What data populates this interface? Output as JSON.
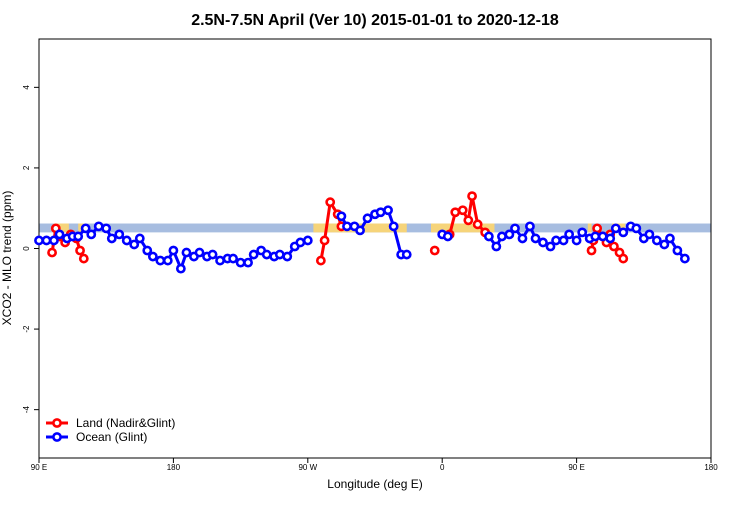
{
  "chart_data": {
    "type": "line",
    "title": "2.5N-7.5N April (Ver 10)   2015-01-01 to 2020-12-18",
    "xlabel": "Longitude (deg E)",
    "ylabel": "XCO2 - MLO trend (ppm)",
    "xlim": [
      90,
      450
    ],
    "ylim": [
      -5.2,
      5.2
    ],
    "x_ticks": [
      {
        "value": 90,
        "label": "90 E"
      },
      {
        "value": 162,
        "label": "180"
      },
      {
        "value": 234,
        "label": "90 W"
      },
      {
        "value": 306,
        "label": "0"
      },
      {
        "value": 378,
        "label": "90 E"
      },
      {
        "value": 450,
        "label": "180"
      }
    ],
    "y_ticks": [
      {
        "value": -4,
        "label": "-4"
      },
      {
        "value": -2,
        "label": "-2"
      },
      {
        "value": 0,
        "label": "0"
      },
      {
        "value": 2,
        "label": "2"
      },
      {
        "value": 4,
        "label": "4"
      }
    ],
    "band": {
      "name": "MLO reference band",
      "color": "#a7bde0",
      "y_range": [
        0.4,
        0.62
      ]
    },
    "land_band_color": "#f6d47a",
    "land_band_ranges": [
      [
        98,
        106
      ],
      [
        111,
        115
      ],
      [
        237,
        287
      ],
      [
        300,
        334
      ],
      [
        345,
        346
      ],
      [
        384,
        386
      ],
      [
        397,
        404
      ]
    ],
    "series": [
      {
        "name": "Land (Nadir&Glint)",
        "color": "#ff0000",
        "segments": [
          [
            [
              97,
              -0.1
            ],
            [
              99,
              0.5
            ],
            [
              101,
              0.3
            ],
            [
              104,
              0.15
            ],
            [
              107,
              0.35
            ]
          ],
          [
            [
              110,
              0.25
            ],
            [
              112,
              -0.05
            ],
            [
              114,
              -0.25
            ]
          ],
          [
            [
              241,
              -0.3
            ],
            [
              243,
              0.2
            ],
            [
              246,
              1.15
            ],
            [
              250,
              0.85
            ],
            [
              252,
              0.55
            ]
          ],
          [
            [
              302,
              -0.05
            ]
          ],
          [
            [
              310,
              0.35
            ],
            [
              313,
              0.9
            ],
            [
              317,
              0.95
            ],
            [
              320,
              0.7
            ],
            [
              322,
              1.3
            ],
            [
              325,
              0.6
            ],
            [
              329,
              0.4
            ]
          ],
          [
            [
              386,
              -0.05
            ],
            [
              387,
              0.2
            ],
            [
              389,
              0.5
            ],
            [
              392,
              0.3
            ],
            [
              394,
              0.15
            ],
            [
              396,
              0.35
            ],
            [
              398,
              0.05
            ],
            [
              401,
              -0.1
            ],
            [
              403,
              -0.25
            ]
          ]
        ]
      },
      {
        "name": "Ocean (Glint)",
        "color": "#0000ff",
        "segments": [
          [
            [
              90,
              0.2
            ],
            [
              94,
              0.2
            ],
            [
              98,
              0.2
            ],
            [
              101,
              0.35
            ],
            [
              105,
              0.25
            ],
            [
              108,
              0.3
            ],
            [
              111,
              0.3
            ],
            [
              115,
              0.5
            ],
            [
              118,
              0.35
            ],
            [
              122,
              0.55
            ],
            [
              126,
              0.5
            ],
            [
              129,
              0.25
            ],
            [
              133,
              0.35
            ],
            [
              137,
              0.2
            ],
            [
              141,
              0.1
            ],
            [
              144,
              0.25
            ],
            [
              148,
              -0.05
            ],
            [
              151,
              -0.2
            ],
            [
              155,
              -0.3
            ],
            [
              159,
              -0.3
            ],
            [
              162,
              -0.05
            ],
            [
              166,
              -0.5
            ],
            [
              169,
              -0.1
            ],
            [
              173,
              -0.2
            ],
            [
              176,
              -0.1
            ],
            [
              180,
              -0.2
            ],
            [
              183,
              -0.15
            ],
            [
              187,
              -0.3
            ],
            [
              191,
              -0.25
            ],
            [
              194,
              -0.25
            ],
            [
              198,
              -0.35
            ],
            [
              202,
              -0.35
            ],
            [
              205,
              -0.15
            ],
            [
              209,
              -0.05
            ],
            [
              212,
              -0.15
            ],
            [
              216,
              -0.2
            ],
            [
              219,
              -0.15
            ],
            [
              223,
              -0.2
            ],
            [
              227,
              0.05
            ],
            [
              230,
              0.15
            ],
            [
              234,
              0.2
            ]
          ],
          [
            [
              252,
              0.8
            ],
            [
              255,
              0.55
            ],
            [
              259,
              0.55
            ],
            [
              262,
              0.45
            ],
            [
              266,
              0.75
            ],
            [
              270,
              0.85
            ],
            [
              273,
              0.9
            ],
            [
              277,
              0.95
            ],
            [
              280,
              0.55
            ],
            [
              284,
              -0.15
            ],
            [
              287,
              -0.15
            ]
          ],
          [
            [
              306,
              0.35
            ],
            [
              309,
              0.3
            ]
          ],
          [
            [
              331,
              0.3
            ],
            [
              335,
              0.05
            ],
            [
              338,
              0.3
            ],
            [
              342,
              0.35
            ],
            [
              345,
              0.5
            ],
            [
              349,
              0.25
            ],
            [
              353,
              0.55
            ],
            [
              356,
              0.25
            ],
            [
              360,
              0.15
            ],
            [
              364,
              0.05
            ],
            [
              367,
              0.2
            ],
            [
              371,
              0.2
            ],
            [
              374,
              0.35
            ],
            [
              378,
              0.2
            ],
            [
              381,
              0.4
            ],
            [
              385,
              0.25
            ],
            [
              388,
              0.3
            ],
            [
              392,
              0.3
            ],
            [
              396,
              0.25
            ],
            [
              399,
              0.5
            ],
            [
              403,
              0.4
            ],
            [
              407,
              0.55
            ],
            [
              410,
              0.5
            ],
            [
              414,
              0.25
            ],
            [
              417,
              0.35
            ],
            [
              421,
              0.2
            ],
            [
              425,
              0.1
            ],
            [
              428,
              0.25
            ],
            [
              432,
              -0.05
            ],
            [
              436,
              -0.25
            ]
          ]
        ]
      }
    ],
    "legend": {
      "position": "bottom-left",
      "entries": [
        {
          "label": "Land (Nadir&Glint)",
          "color": "#ff0000"
        },
        {
          "label": "Ocean (Glint)",
          "color": "#0000ff"
        }
      ]
    },
    "grid": false
  }
}
